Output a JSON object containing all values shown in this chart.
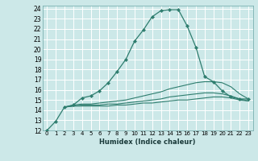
{
  "xlabel": "Humidex (Indice chaleur)",
  "ylabel": "",
  "background_color": "#cce8e8",
  "grid_color": "#b0d8d8",
  "line_color": "#2e7d6e",
  "xlim": [
    -0.5,
    23.5
  ],
  "ylim": [
    12,
    24.3
  ],
  "yticks": [
    12,
    13,
    14,
    15,
    16,
    17,
    18,
    19,
    20,
    21,
    22,
    23,
    24
  ],
  "xticks": [
    0,
    1,
    2,
    3,
    4,
    5,
    6,
    7,
    8,
    9,
    10,
    11,
    12,
    13,
    14,
    15,
    16,
    17,
    18,
    19,
    20,
    21,
    22,
    23
  ],
  "line1_x": [
    0,
    1,
    2,
    3,
    4,
    5,
    6,
    7,
    8,
    9,
    10,
    11,
    12,
    13,
    14,
    15,
    16,
    17,
    18,
    19,
    20,
    21,
    22,
    23
  ],
  "line1_y": [
    12.0,
    12.9,
    14.3,
    14.5,
    15.2,
    15.4,
    15.9,
    16.7,
    17.8,
    19.0,
    20.8,
    21.9,
    23.2,
    23.8,
    23.9,
    23.9,
    22.3,
    20.2,
    17.3,
    16.8,
    15.9,
    15.3,
    15.1,
    15.1
  ],
  "line2_x": [
    2,
    3,
    4,
    5,
    6,
    7,
    8,
    9,
    10,
    11,
    12,
    13,
    14,
    15,
    16,
    17,
    18,
    19,
    20,
    21,
    22,
    23
  ],
  "line2_y": [
    14.3,
    14.5,
    14.6,
    14.6,
    14.7,
    14.8,
    14.9,
    15.0,
    15.2,
    15.4,
    15.6,
    15.8,
    16.1,
    16.3,
    16.5,
    16.7,
    16.8,
    16.8,
    16.7,
    16.3,
    15.6,
    15.1
  ],
  "line3_x": [
    2,
    3,
    4,
    5,
    6,
    7,
    8,
    9,
    10,
    11,
    12,
    13,
    14,
    15,
    16,
    17,
    18,
    19,
    20,
    21,
    22,
    23
  ],
  "line3_y": [
    14.3,
    14.4,
    14.5,
    14.5,
    14.5,
    14.6,
    14.6,
    14.7,
    14.8,
    14.9,
    15.0,
    15.1,
    15.3,
    15.4,
    15.5,
    15.6,
    15.7,
    15.7,
    15.6,
    15.4,
    15.1,
    14.9
  ],
  "line4_x": [
    2,
    3,
    4,
    5,
    6,
    7,
    8,
    9,
    10,
    11,
    12,
    13,
    14,
    15,
    16,
    17,
    18,
    19,
    20,
    21,
    22,
    23
  ],
  "line4_y": [
    14.3,
    14.4,
    14.4,
    14.4,
    14.4,
    14.4,
    14.5,
    14.5,
    14.6,
    14.7,
    14.7,
    14.8,
    14.9,
    15.0,
    15.0,
    15.1,
    15.2,
    15.3,
    15.3,
    15.2,
    15.0,
    14.9
  ]
}
